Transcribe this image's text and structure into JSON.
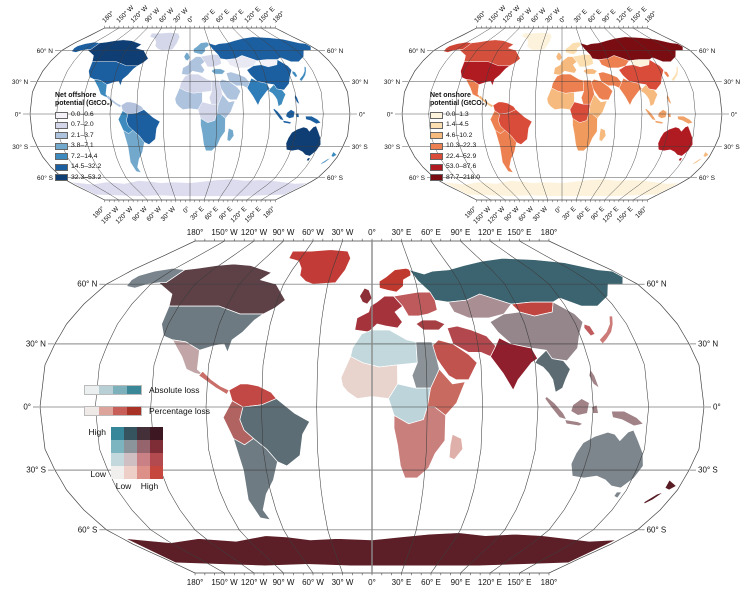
{
  "axis": {
    "lon_labels": [
      "180°",
      "150° W",
      "120° W",
      "90° W",
      "60° W",
      "30° W",
      "0°",
      "30° E",
      "60° E",
      "90° E",
      "120° E",
      "150° E",
      "180°"
    ],
    "lat_labels": [
      "60° N",
      "30° N",
      "0°",
      "30° S",
      "60° S"
    ]
  },
  "panels": {
    "offshore": {
      "legend_title_line1": "Net offshore",
      "legend_title_line2": "potential (GtCO₂)",
      "classes": [
        {
          "range": "0.0–0.6",
          "color": "#f4f2f8"
        },
        {
          "range": "0.7–2.0",
          "color": "#d3d7e9"
        },
        {
          "range": "2.1–3.7",
          "color": "#aec3de"
        },
        {
          "range": "3.8–7.1",
          "color": "#73a8cd"
        },
        {
          "range": "7.2–14.4",
          "color": "#3c8abe"
        },
        {
          "range": "14.5–32.2",
          "color": "#1c5fa0"
        },
        {
          "range": "32.3–53.2",
          "color": "#0f3e74"
        }
      ]
    },
    "onshore": {
      "legend_title_line1": "Net onshore",
      "legend_title_line2": "potential (GtCO₂)",
      "classes": [
        {
          "range": "0.0–1.3",
          "color": "#fdf3dc"
        },
        {
          "range": "1.4–4.5",
          "color": "#fbdfb1"
        },
        {
          "range": "4.6–10.2",
          "color": "#f6b97e"
        },
        {
          "range": "10.3–22.3",
          "color": "#ec8050"
        },
        {
          "range": "22.4–52.9",
          "color": "#d94c3a"
        },
        {
          "range": "53.0–87.6",
          "color": "#b01b22"
        },
        {
          "range": "87.7–218.0",
          "color": "#7a0d12"
        }
      ]
    },
    "loss": {
      "absolute_label": "Absolute loss",
      "percentage_label": "Percentage loss",
      "absolute_ramp": [
        "#eceff0",
        "#b8cfd5",
        "#7cb0bb",
        "#3a8798"
      ],
      "percentage_ramp": [
        "#efe9e8",
        "#dca49b",
        "#c75f58",
        "#a93226"
      ],
      "matrix": [
        [
          "#37879a",
          "#35545f",
          "#443038",
          "#3d1822"
        ],
        [
          "#7cb4c0",
          "#8b939b",
          "#95646c",
          "#7e2c36"
        ],
        [
          "#c2d8dc",
          "#d0bfc2",
          "#c98186",
          "#b34a50"
        ],
        [
          "#f1efee",
          "#edcfc8",
          "#dc9087",
          "#c5473e"
        ]
      ],
      "y_high_label": "High",
      "y_low_label": "Low",
      "x_low_label": "Low",
      "x_high_label": "High"
    }
  },
  "regions": {
    "greenland": {
      "offshore": "#d3d7e9",
      "onshore": "#fdf3dc",
      "loss": "#c23b36"
    },
    "alaska": {
      "offshore": "#1c5fa0",
      "onshore": "#cd4435",
      "loss": "#79848c"
    },
    "canada": {
      "offshore": "#0f3e74",
      "onshore": "#d5503c",
      "loss": "#5d4147"
    },
    "usa": {
      "offshore": "#1c5fa0",
      "onshore": "#b01b22",
      "loss": "#6e7a82"
    },
    "mexico": {
      "offshore": "#3c8abe",
      "onshore": "#ec8050",
      "loss": "#c2a5a6"
    },
    "central-america": {
      "offshore": "#aec3de",
      "onshore": "#f6b97e",
      "loss": "#c96e68"
    },
    "colombia-venezuela": {
      "offshore": "#b4c2de",
      "onshore": "#d94c3a",
      "loss": "#c24845"
    },
    "brazil": {
      "offshore": "#1c5fa0",
      "onshore": "#d94c3a",
      "loss": "#5d6d75"
    },
    "peru-bolivia": {
      "offshore": "#3c8abe",
      "onshore": "#ec8050",
      "loss": "#b06360"
    },
    "argentina-chile": {
      "offshore": "#73a8cd",
      "onshore": "#ec8050",
      "loss": "#6f7b83"
    },
    "uk": {
      "offshore": "#73a8cd",
      "onshore": "#f6b97e",
      "loss": "#8c2f36"
    },
    "europe-west": {
      "offshore": "#aec3de",
      "onshore": "#f6b97e",
      "loss": "#a4333b"
    },
    "scandinavia": {
      "offshore": "#73a8cd",
      "onshore": "#fbdfb1",
      "loss": "#c0392f"
    },
    "eastern-europe": {
      "offshore": "#d3d7e9",
      "onshore": "#fbdfb1",
      "loss": "#bf5a5c"
    },
    "russia": {
      "offshore": "#1c5fa0",
      "onshore": "#7a0d12",
      "loss": "#3c6470"
    },
    "kazakhstan": {
      "offshore": "#e9e9f4",
      "onshore": "#ec8050",
      "loss": "#a98f94"
    },
    "mongolia": {
      "offshore": "#f4f2f8",
      "onshore": "#fdf3dc",
      "loss": "#c0443f"
    },
    "china": {
      "offshore": "#1c5fa0",
      "onshore": "#d94c3a",
      "loss": "#95868b"
    },
    "india": {
      "offshore": "#2e7cb8",
      "onshore": "#ec8050",
      "loss": "#8f1f2c"
    },
    "middle-east": {
      "offshore": "#aec3de",
      "onshore": "#ec8050",
      "loss": "#c1534e"
    },
    "iran": {
      "offshore": "#aec3de",
      "onshore": "#ec8050",
      "loss": "#b2484e"
    },
    "turkey": {
      "offshore": "#73a8cd",
      "onshore": "#f6b97e",
      "loss": "#a63f44"
    },
    "north-africa-west": {
      "offshore": "#d3d7e9",
      "onshore": "#ec8050",
      "loss": "#c2d8dc"
    },
    "egypt-sudan": {
      "offshore": "#d3d7e9",
      "onshore": "#ec8050",
      "loss": "#8b9399"
    },
    "west-africa": {
      "offshore": "#aec3de",
      "onshore": "#f6b97e",
      "loss": "#e8d3cd"
    },
    "central-africa": {
      "offshore": "#d3d7e9",
      "onshore": "#d94c3a",
      "loss": "#bcd4da"
    },
    "east-africa": {
      "offshore": "#aec3de",
      "onshore": "#f6b97e",
      "loss": "#c96a60"
    },
    "southern-africa": {
      "offshore": "#73a8cd",
      "onshore": "#f09a5e",
      "loss": "#c9807d"
    },
    "madagascar": {
      "offshore": "#73a8cd",
      "onshore": "#f6b97e",
      "loss": "#dfb0aa"
    },
    "indochina": {
      "offshore": "#3c8abe",
      "onshore": "#f6b97e",
      "loss": "#5c6b72"
    },
    "indonesia": {
      "offshore": "#1c5fa0",
      "onshore": "#f0a268",
      "loss": "#a08287"
    },
    "japan": {
      "offshore": "#3c8abe",
      "onshore": "#fbdfb1",
      "loss": "#cc7b79"
    },
    "korea": {
      "offshore": "#3c8abe",
      "onshore": "#ec8050",
      "loss": "#c05b5e"
    },
    "australia": {
      "offshore": "#0f3e74",
      "onshore": "#b01b22",
      "loss": "#7d868d"
    },
    "new-zealand": {
      "offshore": "#3c8abe",
      "onshore": "#f6b97e",
      "loss": "#571c24"
    },
    "antarctica": {
      "offshore": "#dcdcee",
      "onshore": "#fdf3dc",
      "loss": "#5d1f27"
    }
  }
}
